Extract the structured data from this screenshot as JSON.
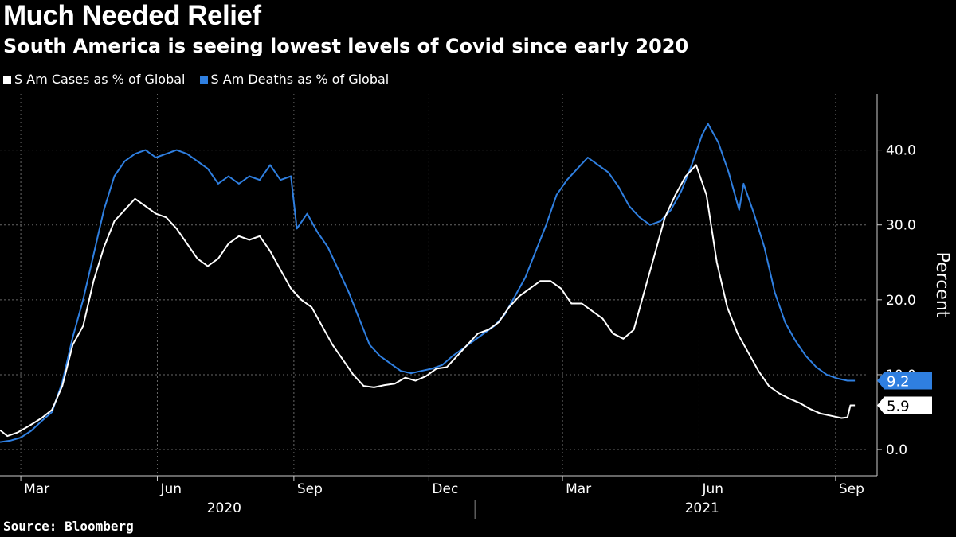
{
  "title": "Much Needed Relief",
  "subtitle": "South America is seeing lowest levels of Covid since early 2020",
  "source": "Source: Bloomberg",
  "colors": {
    "cases": "#ffffff",
    "deaths": "#2f7fe0",
    "background": "#000000",
    "grid": "#666666"
  },
  "chart_data": {
    "type": "line",
    "ylabel": "Percent",
    "ylim": [
      -3.5,
      47.5
    ],
    "y_ticks": [
      0.0,
      10.0,
      20.0,
      30.0,
      40.0
    ],
    "y_tick_labels": [
      "0.0",
      "10.0",
      "20.0",
      "30.0",
      "40.0"
    ],
    "x_range": [
      "2020-02-16",
      "2021-09-22"
    ],
    "x_ticks": [
      {
        "date": "2020-03-01",
        "label": "Mar"
      },
      {
        "date": "2020-06-01",
        "label": "Jun"
      },
      {
        "date": "2020-09-01",
        "label": "Sep"
      },
      {
        "date": "2020-12-01",
        "label": "Dec"
      },
      {
        "date": "2021-03-01",
        "label": "Mar"
      },
      {
        "date": "2021-06-01",
        "label": "Jun"
      },
      {
        "date": "2021-09-01",
        "label": "Sep"
      }
    ],
    "year_labels": [
      {
        "label": "2020",
        "mid": "2020-07-16"
      },
      {
        "label": "2021",
        "mid": "2021-06-03"
      }
    ],
    "year_divider": "2021-01-01",
    "grid": true,
    "legend_position": "top-left",
    "series": [
      {
        "name": "S Am Cases as % of Global",
        "color": "#ffffff",
        "last_label": "5.9",
        "points": [
          [
            "2020-02-16",
            2.6
          ],
          [
            "2020-02-21",
            1.8
          ],
          [
            "2020-02-28",
            2.3
          ],
          [
            "2020-03-07",
            3.2
          ],
          [
            "2020-03-15",
            4.2
          ],
          [
            "2020-03-22",
            5.3
          ],
          [
            "2020-03-29",
            8.5
          ],
          [
            "2020-04-05",
            14.0
          ],
          [
            "2020-04-12",
            16.5
          ],
          [
            "2020-04-19",
            22.5
          ],
          [
            "2020-04-26",
            27.0
          ],
          [
            "2020-05-03",
            30.5
          ],
          [
            "2020-05-10",
            32.0
          ],
          [
            "2020-05-17",
            33.5
          ],
          [
            "2020-05-24",
            32.5
          ],
          [
            "2020-05-31",
            31.5
          ],
          [
            "2020-06-07",
            31.0
          ],
          [
            "2020-06-14",
            29.5
          ],
          [
            "2020-06-21",
            27.5
          ],
          [
            "2020-06-28",
            25.5
          ],
          [
            "2020-07-05",
            24.5
          ],
          [
            "2020-07-12",
            25.5
          ],
          [
            "2020-07-19",
            27.5
          ],
          [
            "2020-07-26",
            28.5
          ],
          [
            "2020-08-02",
            28.0
          ],
          [
            "2020-08-09",
            28.5
          ],
          [
            "2020-08-16",
            26.5
          ],
          [
            "2020-08-23",
            24.0
          ],
          [
            "2020-08-30",
            21.5
          ],
          [
            "2020-09-06",
            20.0
          ],
          [
            "2020-09-13",
            19.0
          ],
          [
            "2020-09-20",
            16.5
          ],
          [
            "2020-09-27",
            14.0
          ],
          [
            "2020-10-04",
            12.0
          ],
          [
            "2020-10-11",
            10.0
          ],
          [
            "2020-10-18",
            8.5
          ],
          [
            "2020-10-25",
            8.3
          ],
          [
            "2020-11-01",
            8.6
          ],
          [
            "2020-11-08",
            8.8
          ],
          [
            "2020-11-15",
            9.6
          ],
          [
            "2020-11-22",
            9.2
          ],
          [
            "2020-11-29",
            9.8
          ],
          [
            "2020-12-06",
            10.8
          ],
          [
            "2020-12-13",
            11.0
          ],
          [
            "2020-12-20",
            12.5
          ],
          [
            "2020-12-27",
            14.0
          ],
          [
            "2021-01-03",
            15.5
          ],
          [
            "2021-01-10",
            16.0
          ],
          [
            "2021-01-17",
            17.0
          ],
          [
            "2021-01-24",
            19.0
          ],
          [
            "2021-01-31",
            20.5
          ],
          [
            "2021-02-07",
            21.5
          ],
          [
            "2021-02-14",
            22.5
          ],
          [
            "2021-02-21",
            22.5
          ],
          [
            "2021-02-28",
            21.5
          ],
          [
            "2021-03-07",
            19.5
          ],
          [
            "2021-03-14",
            19.5
          ],
          [
            "2021-03-21",
            18.5
          ],
          [
            "2021-03-28",
            17.5
          ],
          [
            "2021-04-04",
            15.5
          ],
          [
            "2021-04-11",
            14.8
          ],
          [
            "2021-04-18",
            16.0
          ],
          [
            "2021-04-25",
            21.0
          ],
          [
            "2021-05-02",
            26.0
          ],
          [
            "2021-05-09",
            31.0
          ],
          [
            "2021-05-16",
            34.0
          ],
          [
            "2021-05-23",
            36.5
          ],
          [
            "2021-05-30",
            38.0
          ],
          [
            "2021-06-06",
            34.0
          ],
          [
            "2021-06-13",
            25.0
          ],
          [
            "2021-06-20",
            19.0
          ],
          [
            "2021-06-27",
            15.5
          ],
          [
            "2021-07-04",
            13.0
          ],
          [
            "2021-07-11",
            10.5
          ],
          [
            "2021-07-18",
            8.5
          ],
          [
            "2021-07-25",
            7.5
          ],
          [
            "2021-08-01",
            6.8
          ],
          [
            "2021-08-08",
            6.2
          ],
          [
            "2021-08-15",
            5.4
          ],
          [
            "2021-08-22",
            4.8
          ],
          [
            "2021-08-29",
            4.5
          ],
          [
            "2021-09-05",
            4.2
          ],
          [
            "2021-09-09",
            4.3
          ],
          [
            "2021-09-11",
            5.9
          ],
          [
            "2021-09-14",
            5.9
          ]
        ]
      },
      {
        "name": "S Am Deaths as % of Global",
        "color": "#2f7fe0",
        "last_label": "9.2",
        "points": [
          [
            "2020-02-16",
            1.0
          ],
          [
            "2020-02-23",
            1.2
          ],
          [
            "2020-03-01",
            1.6
          ],
          [
            "2020-03-08",
            2.5
          ],
          [
            "2020-03-15",
            3.8
          ],
          [
            "2020-03-22",
            5.0
          ],
          [
            "2020-03-29",
            9.0
          ],
          [
            "2020-04-05",
            15.0
          ],
          [
            "2020-04-12",
            20.0
          ],
          [
            "2020-04-19",
            26.0
          ],
          [
            "2020-04-26",
            32.0
          ],
          [
            "2020-05-03",
            36.5
          ],
          [
            "2020-05-10",
            38.5
          ],
          [
            "2020-05-17",
            39.5
          ],
          [
            "2020-05-24",
            40.0
          ],
          [
            "2020-05-31",
            39.0
          ],
          [
            "2020-06-07",
            39.5
          ],
          [
            "2020-06-14",
            40.0
          ],
          [
            "2020-06-21",
            39.5
          ],
          [
            "2020-06-28",
            38.5
          ],
          [
            "2020-07-05",
            37.5
          ],
          [
            "2020-07-12",
            35.5
          ],
          [
            "2020-07-19",
            36.5
          ],
          [
            "2020-07-26",
            35.5
          ],
          [
            "2020-08-02",
            36.5
          ],
          [
            "2020-08-09",
            36.0
          ],
          [
            "2020-08-16",
            38.0
          ],
          [
            "2020-08-23",
            36.0
          ],
          [
            "2020-08-30",
            36.5
          ],
          [
            "2020-09-03",
            29.5
          ],
          [
            "2020-09-10",
            31.5
          ],
          [
            "2020-09-17",
            29.0
          ],
          [
            "2020-09-24",
            27.0
          ],
          [
            "2020-10-01",
            24.0
          ],
          [
            "2020-10-08",
            21.0
          ],
          [
            "2020-10-15",
            17.5
          ],
          [
            "2020-10-22",
            14.0
          ],
          [
            "2020-10-29",
            12.5
          ],
          [
            "2020-11-05",
            11.5
          ],
          [
            "2020-11-12",
            10.5
          ],
          [
            "2020-11-19",
            10.2
          ],
          [
            "2020-11-26",
            10.5
          ],
          [
            "2020-12-03",
            10.8
          ],
          [
            "2020-12-10",
            11.3
          ],
          [
            "2020-12-17",
            12.5
          ],
          [
            "2020-12-24",
            13.5
          ],
          [
            "2020-12-31",
            14.5
          ],
          [
            "2021-01-07",
            15.5
          ],
          [
            "2021-01-14",
            16.5
          ],
          [
            "2021-01-21",
            18.0
          ],
          [
            "2021-01-28",
            20.5
          ],
          [
            "2021-02-04",
            23.0
          ],
          [
            "2021-02-11",
            26.5
          ],
          [
            "2021-02-18",
            30.0
          ],
          [
            "2021-02-25",
            34.0
          ],
          [
            "2021-03-04",
            36.0
          ],
          [
            "2021-03-11",
            37.5
          ],
          [
            "2021-03-18",
            39.0
          ],
          [
            "2021-03-25",
            38.0
          ],
          [
            "2021-04-01",
            37.0
          ],
          [
            "2021-04-08",
            35.0
          ],
          [
            "2021-04-15",
            32.5
          ],
          [
            "2021-04-22",
            31.0
          ],
          [
            "2021-04-29",
            30.0
          ],
          [
            "2021-05-06",
            30.5
          ],
          [
            "2021-05-13",
            32.0
          ],
          [
            "2021-05-20",
            34.5
          ],
          [
            "2021-05-27",
            38.0
          ],
          [
            "2021-06-03",
            42.0
          ],
          [
            "2021-06-07",
            43.5
          ],
          [
            "2021-06-14",
            41.0
          ],
          [
            "2021-06-21",
            37.0
          ],
          [
            "2021-06-28",
            32.0
          ],
          [
            "2021-07-01",
            35.5
          ],
          [
            "2021-07-08",
            31.5
          ],
          [
            "2021-07-15",
            27.0
          ],
          [
            "2021-07-22",
            21.0
          ],
          [
            "2021-07-29",
            17.0
          ],
          [
            "2021-08-05",
            14.5
          ],
          [
            "2021-08-12",
            12.5
          ],
          [
            "2021-08-19",
            11.0
          ],
          [
            "2021-08-26",
            10.0
          ],
          [
            "2021-09-02",
            9.5
          ],
          [
            "2021-09-09",
            9.2
          ],
          [
            "2021-09-14",
            9.2
          ]
        ]
      }
    ]
  }
}
